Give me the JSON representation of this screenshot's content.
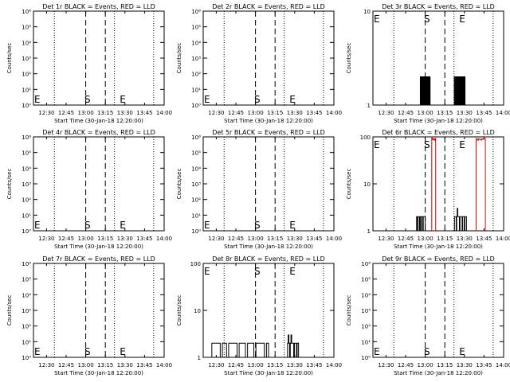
{
  "common": {
    "xlabel": "Start Time (30-Jan-18 12:20:00)",
    "ylabel": "Counts/sec",
    "xticks": [
      "12:30",
      "12:45",
      "13:00",
      "13:15",
      "13:30",
      "13:45",
      "14:00"
    ]
  },
  "chart_data": [
    {
      "type": "line",
      "title": "Det 1r BLACK = Events, RED = LLD",
      "yscale": "log",
      "ylim": [
        1,
        1000000
      ],
      "yticks": [
        "10⁰",
        "10¹",
        "10²",
        "10³",
        "10⁴",
        "10⁵",
        "10⁶"
      ],
      "markers": {
        "E1": "E",
        "S": "S",
        "E2": "E"
      },
      "series": []
    },
    {
      "type": "line",
      "title": "Det 2r BLACK = Events, RED = LLD",
      "yscale": "log",
      "ylim": [
        1,
        1000000
      ],
      "yticks": [
        "10⁰",
        "10¹",
        "10²",
        "10³",
        "10⁴",
        "10⁵",
        "10⁶"
      ],
      "markers": {
        "E1": "E",
        "S": "S",
        "E2": "E"
      },
      "series": []
    },
    {
      "type": "line",
      "title": "Det 3r BLACK = Events, RED = LLD",
      "yscale": "log",
      "ylim": [
        1,
        10
      ],
      "yticks": [
        "1",
        "10"
      ],
      "markers": {
        "E1": "E",
        "S": "S",
        "E2": "E"
      },
      "series": [
        {
          "color": "#000000",
          "x_start": "12:56",
          "x_end": "13:04",
          "values": [
            1,
            2,
            1,
            2,
            2,
            1,
            2,
            1,
            2,
            2,
            1,
            1,
            2,
            1,
            2,
            1,
            2,
            2,
            1,
            2,
            1,
            1,
            2,
            1,
            2,
            1,
            2,
            2,
            1,
            2,
            1
          ]
        },
        {
          "color": "#000000",
          "x_start": "13:22",
          "x_end": "13:31",
          "values": [
            1,
            2,
            1,
            1,
            2,
            2,
            1,
            2,
            1,
            2,
            1,
            1,
            2,
            2,
            1,
            2,
            1,
            2,
            2,
            1,
            1,
            2,
            1,
            2,
            1,
            2,
            1,
            2,
            2,
            1,
            2,
            1,
            1
          ]
        }
      ]
    },
    {
      "type": "line",
      "title": "Det 4r BLACK = Events, RED = LLD",
      "yscale": "log",
      "ylim": [
        1,
        1000000
      ],
      "yticks": [
        "10⁰",
        "10¹",
        "10²",
        "10³",
        "10⁴",
        "10⁵",
        "10⁶"
      ],
      "markers": {
        "E1": "E",
        "S": "S",
        "E2": "E"
      },
      "series": []
    },
    {
      "type": "line",
      "title": "Det 5r BLACK = Events, RED = LLD",
      "yscale": "log",
      "ylim": [
        1,
        1000000
      ],
      "yticks": [
        "10⁰",
        "10¹",
        "10²",
        "10³",
        "10⁴",
        "10⁵",
        "10⁶"
      ],
      "markers": {
        "E1": "E",
        "S": "S",
        "E2": "E"
      },
      "series": []
    },
    {
      "type": "line",
      "title": "Det 6r BLACK = Events, RED = LLD",
      "yscale": "log",
      "ylim": [
        1,
        100
      ],
      "yticks": [
        "1",
        "10",
        "100"
      ],
      "markers": {
        "E1": "E",
        "S": "S",
        "E2": "E"
      },
      "series": [
        {
          "color": "#000000",
          "x_start": "12:53",
          "x_end": "13:00",
          "values": [
            1,
            2,
            2,
            1,
            2,
            2,
            2,
            1,
            2,
            2,
            1,
            2,
            2,
            2,
            1,
            2,
            2,
            2,
            2
          ]
        },
        {
          "color": "#000000",
          "x_start": "13:22",
          "x_end": "13:32",
          "values": [
            1,
            2,
            2,
            2,
            1,
            2,
            3,
            2,
            2,
            2,
            1,
            2,
            2,
            2,
            2,
            1,
            2,
            2,
            2,
            1,
            2,
            2,
            2,
            1
          ]
        },
        {
          "color": "#dd0000",
          "x_start": "13:05",
          "x_end": "13:08",
          "values": [
            95,
            88,
            90,
            85,
            92
          ]
        },
        {
          "color": "#dd0000",
          "x_start": "13:39",
          "x_end": "13:46",
          "values": [
            92,
            85,
            90,
            88,
            86,
            91,
            89,
            92
          ]
        }
      ]
    },
    {
      "type": "line",
      "title": "Det 7r BLACK = Events, RED = LLD",
      "yscale": "log",
      "ylim": [
        1,
        1000000
      ],
      "yticks": [
        "10⁰",
        "10¹",
        "10²",
        "10³",
        "10⁴",
        "10⁵",
        "10⁶"
      ],
      "markers": {
        "E1": "E",
        "S": "S",
        "E2": "E"
      },
      "series": []
    },
    {
      "type": "line",
      "title": "Det 8r BLACK = Events, RED = LLD",
      "yscale": "log",
      "ylim": [
        1,
        100
      ],
      "yticks": [
        "1",
        "10",
        "100"
      ],
      "markers": {
        "E1": "E",
        "S": "S",
        "E2": "E"
      },
      "series": [
        {
          "color": "#000000",
          "x_start": "12:25",
          "x_end": "13:10",
          "values": [
            1,
            2,
            2,
            2,
            2,
            1,
            2,
            2,
            1,
            2,
            2,
            2,
            2,
            1,
            2,
            2,
            2,
            1,
            2,
            2,
            2,
            1,
            2,
            2,
            2,
            2,
            1,
            2
          ]
        },
        {
          "color": "#000000",
          "x_start": "13:24",
          "x_end": "13:34",
          "values": [
            1,
            2,
            3,
            2,
            1,
            2,
            3,
            2,
            2,
            2,
            1,
            2,
            2,
            2,
            1,
            2,
            2,
            1,
            1
          ]
        }
      ]
    },
    {
      "type": "line",
      "title": "Det 9r BLACK = Events, RED = LLD",
      "yscale": "log",
      "ylim": [
        1,
        1000000
      ],
      "yticks": [
        "10⁰",
        "10¹",
        "10²",
        "10³",
        "10⁴",
        "10⁵",
        "10⁶"
      ],
      "markers": {
        "E1": "E",
        "S": "S",
        "E2": "E"
      },
      "series": []
    }
  ]
}
